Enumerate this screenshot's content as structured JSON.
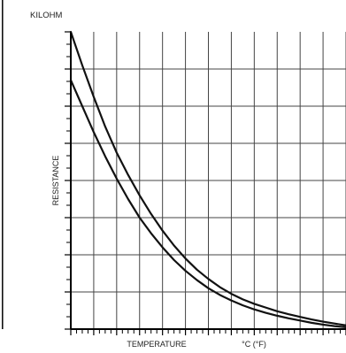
{
  "chart_data": {
    "type": "line",
    "title": "",
    "unit_label": "KILOHM",
    "xlabel": "TEMPERATURE",
    "xlabel_unit": "°C (°F)",
    "ylabel": "RESISTANCE",
    "tick_labels_printed": false,
    "grid": true,
    "x_range": [
      0,
      12
    ],
    "y_range": [
      0,
      8
    ],
    "x_minor_per_major": 4,
    "y_minor_per_major": 3,
    "series": [
      {
        "x": [
          0,
          0.5,
          1,
          1.5,
          2,
          2.5,
          3,
          3.5,
          4,
          4.5,
          5,
          5.5,
          6,
          6.5,
          7,
          7.5,
          8,
          8.5,
          9,
          9.5,
          10,
          10.5,
          11,
          11.5,
          12
        ],
        "values": [
          8.0,
          7.1,
          6.25,
          5.45,
          4.75,
          4.15,
          3.6,
          3.1,
          2.65,
          2.25,
          1.9,
          1.6,
          1.35,
          1.13,
          0.95,
          0.8,
          0.68,
          0.58,
          0.48,
          0.4,
          0.33,
          0.26,
          0.2,
          0.15,
          0.1
        ]
      },
      {
        "x": [
          0,
          0.5,
          1,
          1.5,
          2,
          2.5,
          3,
          3.5,
          4,
          4.5,
          5,
          5.5,
          6,
          6.5,
          7,
          7.5,
          8,
          8.5,
          9,
          9.5,
          10,
          10.5,
          11,
          11.5,
          12
        ],
        "values": [
          6.7,
          6.0,
          5.3,
          4.65,
          4.05,
          3.5,
          3.0,
          2.58,
          2.2,
          1.86,
          1.57,
          1.32,
          1.1,
          0.92,
          0.77,
          0.64,
          0.53,
          0.44,
          0.36,
          0.29,
          0.23,
          0.17,
          0.12,
          0.08,
          0.05
        ]
      }
    ],
    "colors": {
      "line": "#111111",
      "grid": "#444444",
      "frame": "#000000"
    }
  }
}
